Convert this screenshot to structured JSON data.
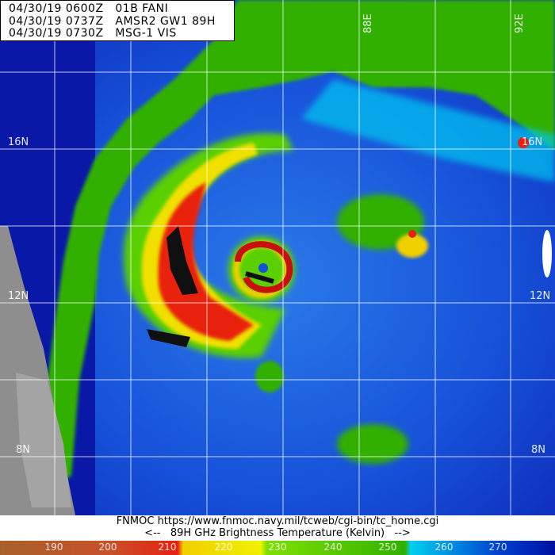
{
  "header": {
    "lines": [
      "04/30/19 0600Z   01B FANI",
      "04/30/19 0737Z   AMSR2 GW1 89H",
      "04/30/19 0730Z   MSG-1 VIS"
    ]
  },
  "grid": {
    "lat_labels": [
      "16N",
      "12N",
      "8N"
    ],
    "lon_labels": [
      "88E",
      "92E"
    ]
  },
  "footer": {
    "source": "FNMOC https://www.fnmoc.navy.mil/tcweb/cgi-bin/tc_home.cgi",
    "legend_title": "<--   89H GHz Brightness Temperature (Kelvin)   -->"
  },
  "colorbar": {
    "unit": "Kelvin",
    "ticks": [
      "190",
      "200",
      "210",
      "220",
      "230",
      "240",
      "250",
      "260",
      "270"
    ],
    "colors": [
      "#a8602a",
      "#c8502a",
      "#e82010",
      "#f0d000",
      "#f0f000",
      "#80e000",
      "#30b000",
      "#00d0f0",
      "#0040d0",
      "#0010a0"
    ]
  }
}
